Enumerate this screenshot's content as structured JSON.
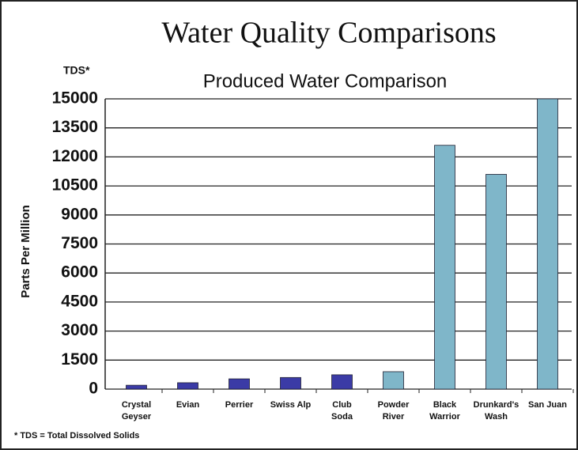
{
  "chart_data": {
    "type": "bar",
    "title": "Water Quality Comparisons",
    "subtitle": "Produced Water Comparison",
    "corner_label": "TDS*",
    "ylabel": "Parts Per Million",
    "footnote": "* TDS = Total Dissolved Solids",
    "categories": [
      [
        "Crystal",
        "Geyser"
      ],
      [
        "Evian"
      ],
      [
        "Perrier"
      ],
      [
        "Swiss Alp"
      ],
      [
        "Club",
        "Soda"
      ],
      [
        "Powder",
        "River"
      ],
      [
        "Black",
        "Warrior"
      ],
      [
        "Drunkard's",
        "Wash"
      ],
      [
        "San Juan"
      ]
    ],
    "values": [
      200,
      330,
      530,
      600,
      740,
      900,
      12600,
      11100,
      15000
    ],
    "colors": [
      "#3b3ba6",
      "#3b3ba6",
      "#3b3ba6",
      "#3b3ba6",
      "#3b3ba6",
      "#7fb6c9",
      "#7fb6c9",
      "#7fb6c9",
      "#7fb6c9"
    ],
    "ylim": [
      0,
      15000
    ],
    "yticks": [
      0,
      1500,
      3000,
      4500,
      6000,
      7500,
      9000,
      10500,
      12000,
      13500,
      15000
    ],
    "grid": true
  }
}
